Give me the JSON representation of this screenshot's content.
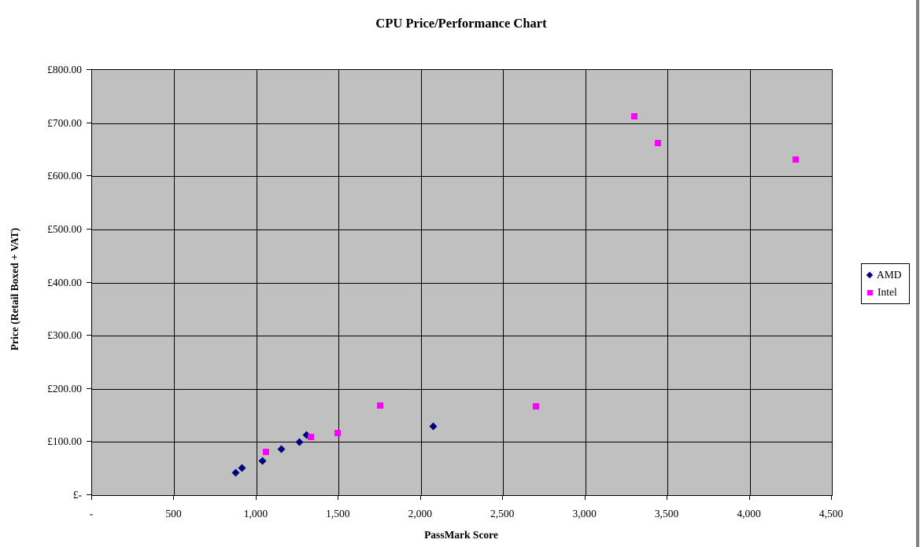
{
  "chart_data": {
    "type": "scatter",
    "title": "CPU Price/Performance Chart",
    "xlabel": "PassMark Score",
    "ylabel": "Price (Retail Boxed + VAT)",
    "xlim": [
      0,
      4500
    ],
    "ylim": [
      0,
      800
    ],
    "grid": true,
    "plot_background": "#c0c0c0",
    "gridline_color": "#000000",
    "axis_color": "#000000",
    "x_ticks": [
      {
        "value": 0,
        "label": "-"
      },
      {
        "value": 500,
        "label": "500"
      },
      {
        "value": 1000,
        "label": "1,000"
      },
      {
        "value": 1500,
        "label": "1,500"
      },
      {
        "value": 2000,
        "label": "2,000"
      },
      {
        "value": 2500,
        "label": "2,500"
      },
      {
        "value": 3000,
        "label": "3,000"
      },
      {
        "value": 3500,
        "label": "3,500"
      },
      {
        "value": 4000,
        "label": "4,000"
      },
      {
        "value": 4500,
        "label": "4,500"
      }
    ],
    "y_ticks": [
      {
        "value": 0,
        "label": "£-"
      },
      {
        "value": 100,
        "label": "£100.00"
      },
      {
        "value": 200,
        "label": "£200.00"
      },
      {
        "value": 300,
        "label": "£300.00"
      },
      {
        "value": 400,
        "label": "£400.00"
      },
      {
        "value": 500,
        "label": "£500.00"
      },
      {
        "value": 600,
        "label": "£600.00"
      },
      {
        "value": 700,
        "label": "£700.00"
      },
      {
        "value": 800,
        "label": "£800.00"
      }
    ],
    "legend": {
      "position": "right",
      "entries": [
        "AMD",
        "Intel"
      ]
    },
    "series": [
      {
        "name": "AMD",
        "marker": "diamond",
        "color": "#000080",
        "points": [
          [
            875,
            42
          ],
          [
            910,
            51
          ],
          [
            1035,
            65
          ],
          [
            1150,
            87
          ],
          [
            1260,
            100
          ],
          [
            1305,
            113
          ],
          [
            2075,
            130
          ]
        ]
      },
      {
        "name": "Intel",
        "marker": "square",
        "color": "#ff00ff",
        "points": [
          [
            1060,
            82
          ],
          [
            1330,
            110
          ],
          [
            1495,
            117
          ],
          [
            1750,
            168
          ],
          [
            2700,
            167
          ],
          [
            3300,
            713
          ],
          [
            3440,
            662
          ],
          [
            4280,
            632
          ]
        ]
      }
    ]
  },
  "page": {
    "background": "#ffffff",
    "right_edge_color": "#808080"
  }
}
